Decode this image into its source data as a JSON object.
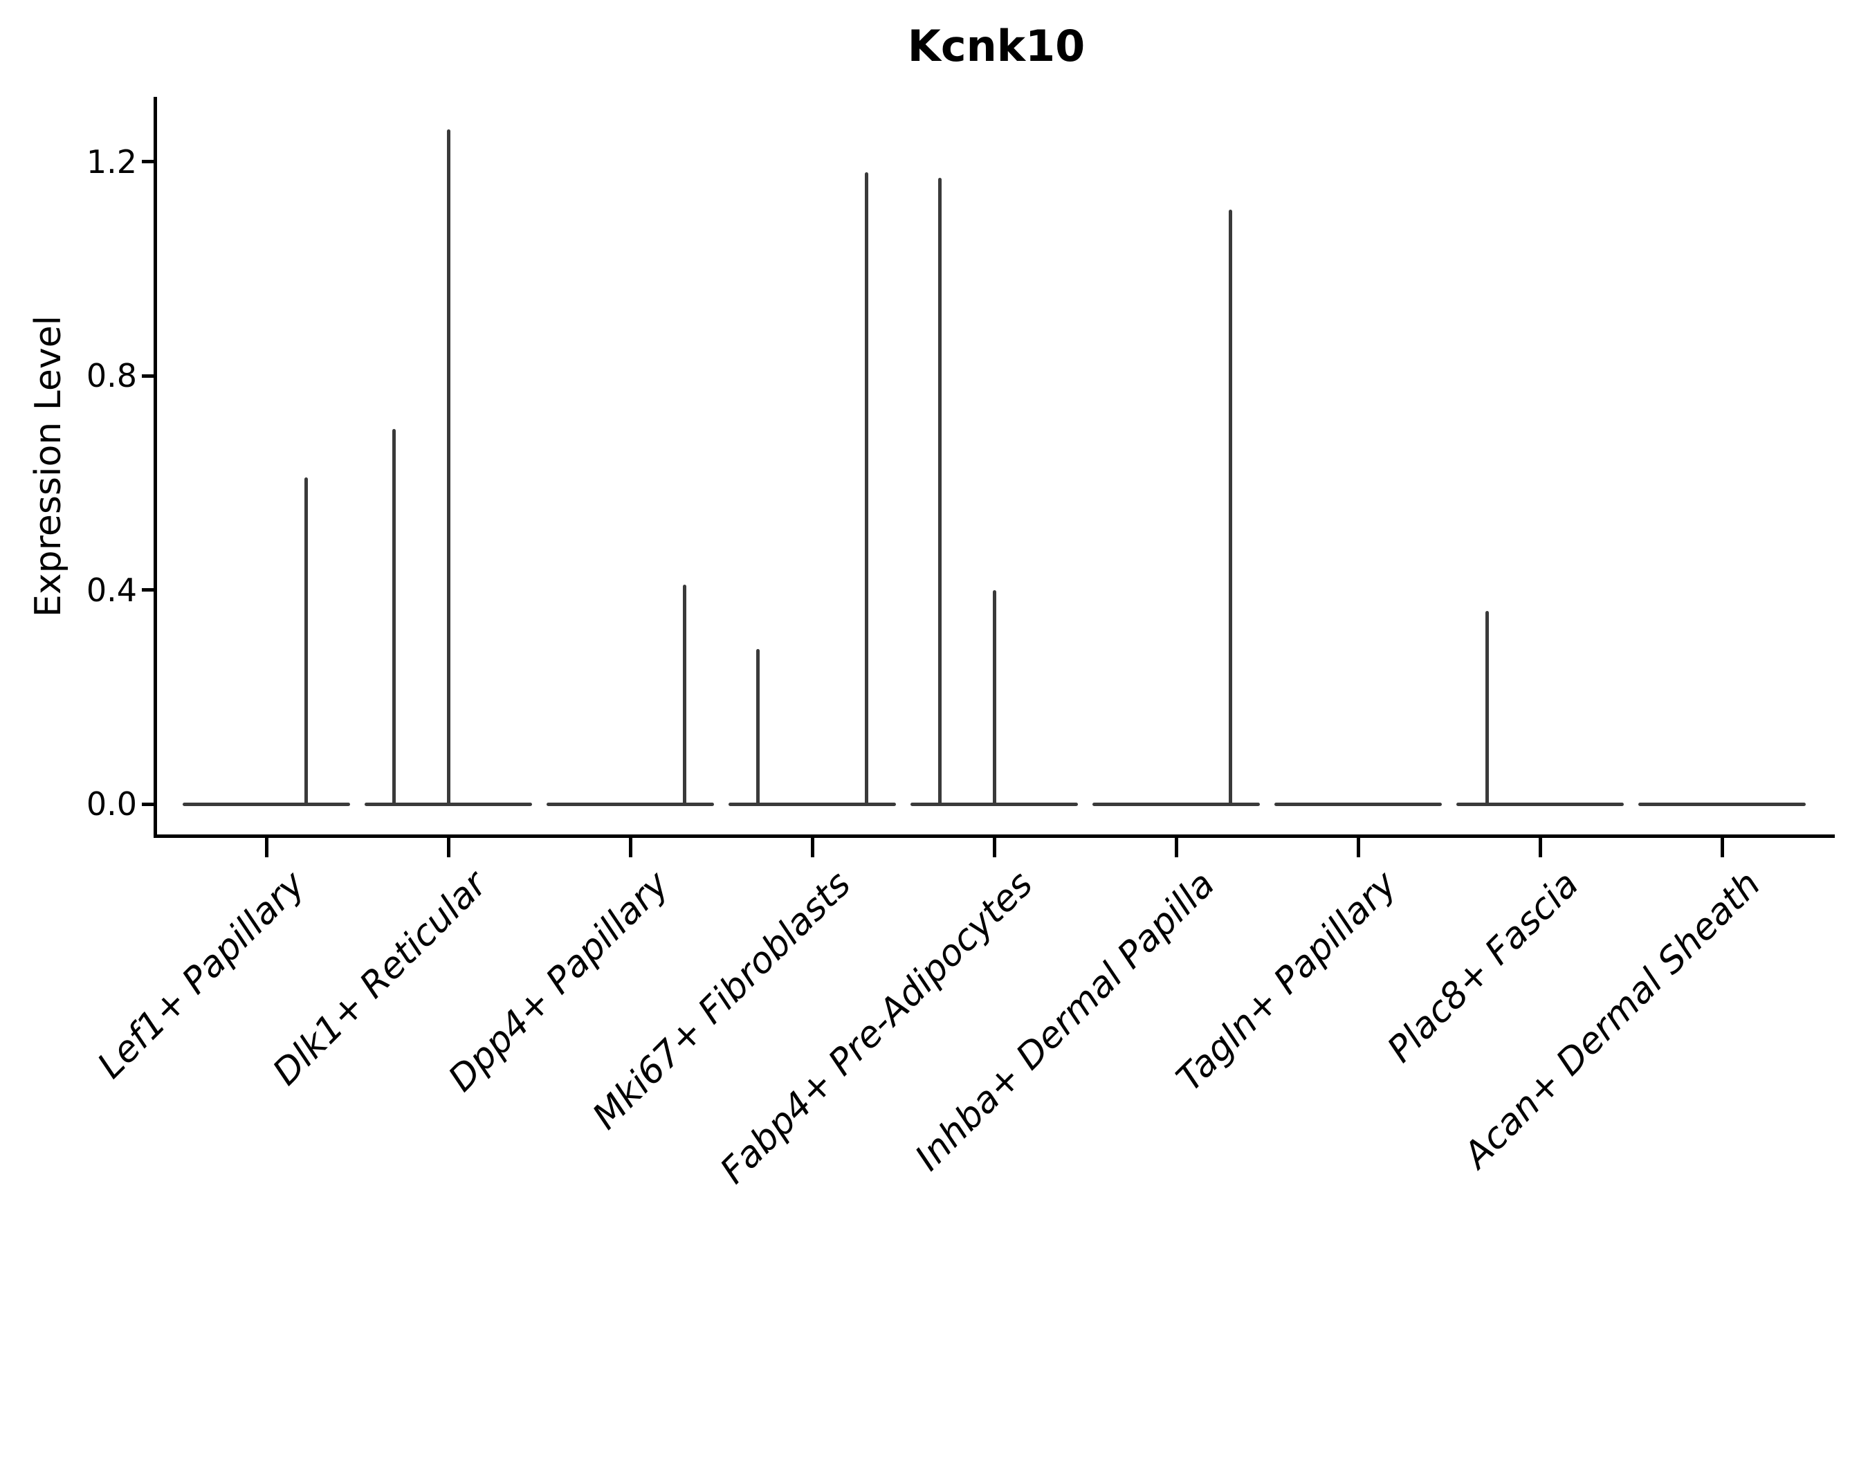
{
  "title": "Kcnk10",
  "y_axis": {
    "label": "Expression Level",
    "tick_labels": [
      "0.0",
      "0.4",
      "0.8",
      "1.2"
    ]
  },
  "colors": {
    "axis": "#000000",
    "violin": "#3a3a3a",
    "background": "#ffffff"
  },
  "chart_data": {
    "type": "violin",
    "title": "Kcnk10",
    "xlabel": "",
    "ylabel": "Expression Level",
    "ylim": [
      -0.06,
      1.32
    ],
    "yticks": [
      0.0,
      0.4,
      0.8,
      1.2
    ],
    "grid": false,
    "legend": "none",
    "categories": [
      "Lef1+ Papillary",
      "Dlk1+ Reticular",
      "Dpp4+ Papillary",
      "Mki67+ Fibroblasts",
      "Fabp4+ Pre-Adipocytes",
      "Inhba+ Dermal Papilla",
      "Tagln+ Papillary",
      "Plac8+ Fascia",
      "Acan+ Dermal Sheath"
    ],
    "description": "Violin plot of Kcnk10 expression per fibroblast subtype; expression is ~0 in most cells (flat violin body at 0) with thin density spikes up to the few expressing cells' values.",
    "baseline_value": 0.0,
    "baseline_halfwidth_frac": 0.46,
    "violins": [
      {
        "label": "Lef1+ Papillary",
        "max": 0.61,
        "spikes": [
          {
            "offset_frac": 0.22,
            "value": 0.61
          }
        ]
      },
      {
        "label": "Dlk1+ Reticular",
        "max": 1.26,
        "spikes": [
          {
            "offset_frac": -0.3,
            "value": 0.7
          },
          {
            "offset_frac": 0.0,
            "value": 1.26
          }
        ]
      },
      {
        "label": "Dpp4+ Papillary",
        "max": 0.41,
        "spikes": [
          {
            "offset_frac": 0.3,
            "value": 0.41
          }
        ]
      },
      {
        "label": "Mki67+ Fibroblasts",
        "max": 1.18,
        "spikes": [
          {
            "offset_frac": -0.3,
            "value": 0.29
          },
          {
            "offset_frac": 0.3,
            "value": 1.18
          }
        ]
      },
      {
        "label": "Fabp4+ Pre-Adipocytes",
        "max": 1.17,
        "spikes": [
          {
            "offset_frac": -0.3,
            "value": 1.17
          },
          {
            "offset_frac": 0.0,
            "value": 0.4
          }
        ]
      },
      {
        "label": "Inhba+ Dermal Papilla",
        "max": 1.11,
        "spikes": [
          {
            "offset_frac": 0.3,
            "value": 1.11
          }
        ]
      },
      {
        "label": "Tagln+ Papillary",
        "max": 0.0,
        "spikes": []
      },
      {
        "label": "Plac8+ Fascia",
        "max": 0.36,
        "spikes": [
          {
            "offset_frac": -0.29,
            "value": 0.36
          }
        ]
      },
      {
        "label": "Acan+ Dermal Sheath",
        "max": 0.0,
        "spikes": []
      }
    ]
  }
}
